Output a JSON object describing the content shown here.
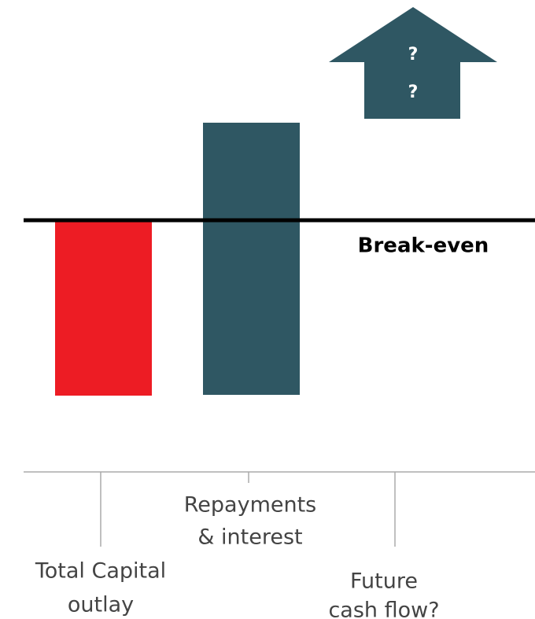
{
  "arrow": {
    "lines": [
      "?",
      "?"
    ]
  },
  "break_even": {
    "label": "Break-even"
  },
  "categories": [
    {
      "lines": [
        "Total Capital",
        "outlay"
      ]
    },
    {
      "lines": [
        "Repayments",
        "& interest"
      ]
    },
    {
      "lines": [
        "Future",
        "cash flow?"
      ]
    }
  ]
}
